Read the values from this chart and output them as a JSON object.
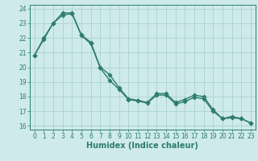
{
  "title": "",
  "xlabel": "Humidex (Indice chaleur)",
  "ylabel": "",
  "bg_color": "#ceeaea",
  "line_color": "#2e7d6e",
  "series1_y": [
    20.8,
    21.9,
    23.0,
    23.7,
    23.7,
    22.2,
    21.7,
    20.0,
    19.5,
    18.6,
    17.85,
    17.75,
    17.6,
    18.2,
    18.2,
    17.6,
    17.8,
    18.1,
    18.0,
    17.1,
    16.5,
    16.65,
    16.5,
    16.2
  ],
  "series2_y": [
    20.8,
    22.0,
    23.0,
    23.55,
    23.65,
    22.15,
    21.6,
    19.95,
    19.1,
    18.5,
    17.8,
    17.7,
    17.55,
    18.1,
    18.1,
    17.5,
    17.65,
    17.95,
    17.85,
    17.0,
    16.5,
    16.55,
    16.5,
    16.2
  ],
  "x": [
    0,
    1,
    2,
    3,
    4,
    5,
    6,
    7,
    8,
    9,
    10,
    11,
    12,
    13,
    14,
    15,
    16,
    17,
    18,
    19,
    20,
    21,
    22,
    23
  ],
  "ylim": [
    15.75,
    24.25
  ],
  "xlim": [
    -0.5,
    23.5
  ],
  "yticks": [
    16,
    17,
    18,
    19,
    20,
    21,
    22,
    23,
    24
  ],
  "xticks": [
    0,
    1,
    2,
    3,
    4,
    5,
    6,
    7,
    8,
    9,
    10,
    11,
    12,
    13,
    14,
    15,
    16,
    17,
    18,
    19,
    20,
    21,
    22,
    23
  ],
  "grid_color": "#aad4cc",
  "markersize": 2.8,
  "linewidth": 1.0,
  "tick_fontsize": 5.5,
  "xlabel_fontsize": 7.0
}
